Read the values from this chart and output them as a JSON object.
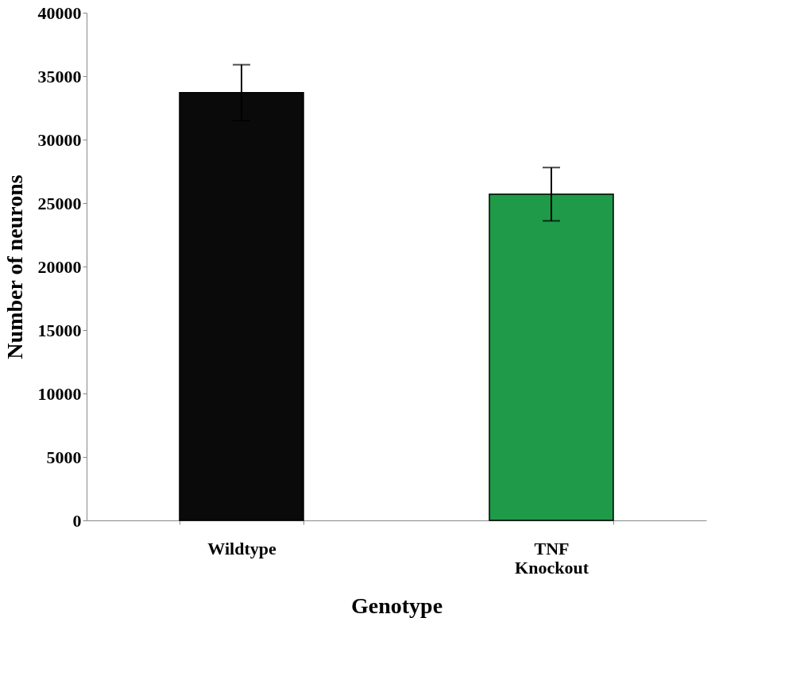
{
  "chart_data": {
    "type": "bar",
    "xlabel": "Genotype",
    "ylabel": "Number of neurons",
    "categories": [
      "Wildtype",
      "TNF Knockout"
    ],
    "values": [
      33700,
      25700
    ],
    "colors": [
      "#0a0a0a",
      "#1e9a48"
    ],
    "errors": [
      2200,
      2100
    ],
    "ylim": [
      0,
      40000
    ],
    "yticks": [
      0,
      5000,
      10000,
      15000,
      20000,
      25000,
      30000,
      35000,
      40000
    ],
    "grid": false
  }
}
